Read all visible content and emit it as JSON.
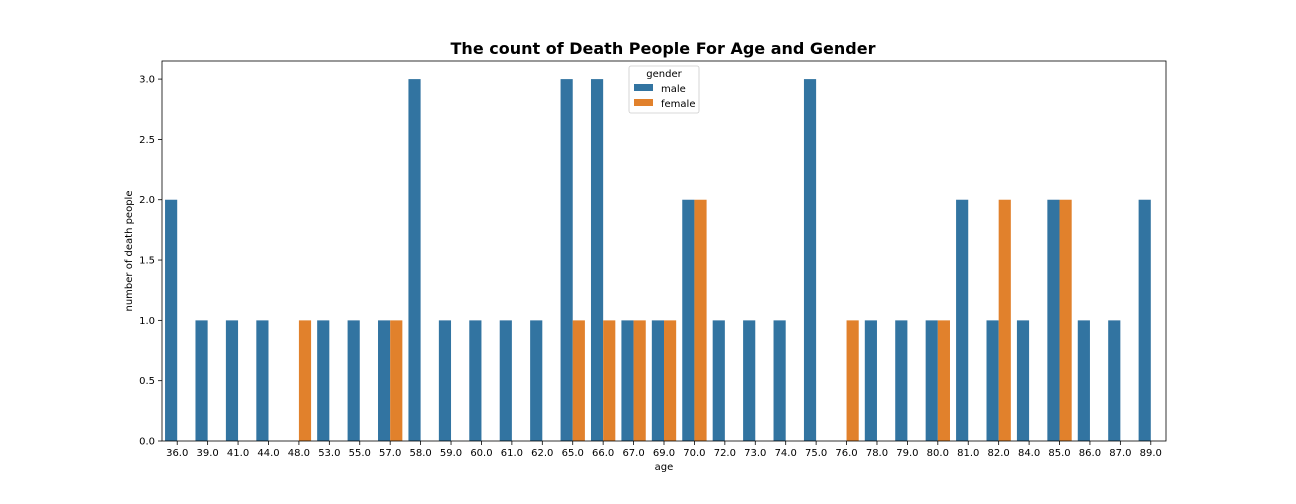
{
  "chart_data": {
    "type": "bar",
    "title": "The count of Death People For Age and Gender",
    "xlabel": "age",
    "ylabel": "number of death people",
    "ylim": [
      0,
      3.15
    ],
    "yticks": [
      "0.0",
      "0.5",
      "1.0",
      "1.5",
      "2.0",
      "2.5",
      "3.0"
    ],
    "categories": [
      "36.0",
      "39.0",
      "41.0",
      "44.0",
      "48.0",
      "53.0",
      "55.0",
      "57.0",
      "58.0",
      "59.0",
      "60.0",
      "61.0",
      "62.0",
      "65.0",
      "66.0",
      "67.0",
      "69.0",
      "70.0",
      "72.0",
      "73.0",
      "74.0",
      "75.0",
      "76.0",
      "78.0",
      "79.0",
      "80.0",
      "81.0",
      "82.0",
      "84.0",
      "85.0",
      "86.0",
      "87.0",
      "89.0"
    ],
    "series": [
      {
        "name": "male",
        "color": "#3274a1",
        "values": [
          2,
          1,
          1,
          1,
          0,
          1,
          1,
          1,
          3,
          1,
          1,
          1,
          1,
          3,
          3,
          1,
          1,
          2,
          1,
          1,
          1,
          3,
          0,
          1,
          1,
          1,
          2,
          1,
          1,
          2,
          1,
          1,
          2
        ]
      },
      {
        "name": "female",
        "color": "#e1812c",
        "values": [
          0,
          0,
          0,
          0,
          1,
          0,
          0,
          1,
          0,
          0,
          0,
          0,
          0,
          1,
          1,
          1,
          1,
          2,
          0,
          0,
          0,
          0,
          1,
          0,
          0,
          1,
          0,
          2,
          0,
          2,
          0,
          0,
          0
        ]
      }
    ],
    "legend": {
      "title": "gender",
      "placement": "top-center"
    },
    "grid": false
  }
}
